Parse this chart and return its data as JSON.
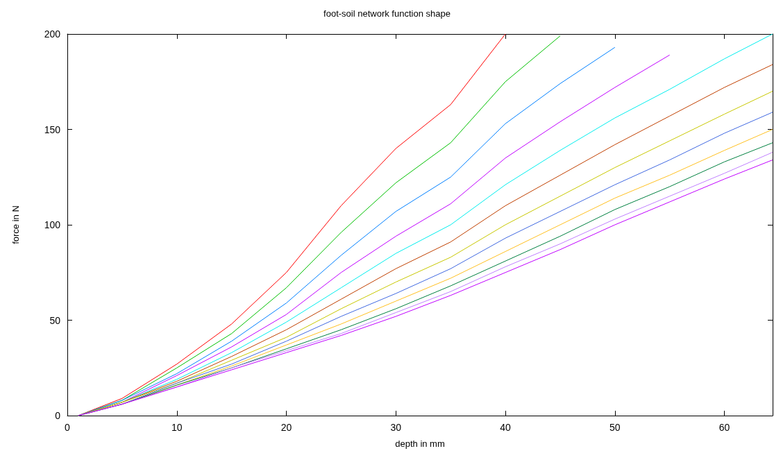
{
  "chart_data": {
    "type": "line",
    "title": "foot-soil network function shape",
    "xlabel": "depth in mm",
    "ylabel": "force in N",
    "xlim": [
      0,
      64.4
    ],
    "xticks": [
      0,
      10,
      20,
      30,
      40,
      50,
      60
    ],
    "ylim": [
      0,
      200
    ],
    "yticks": [
      0,
      50,
      100,
      150,
      200
    ],
    "grid": false,
    "marker": "none",
    "line_style": "solid",
    "series": [
      {
        "color": "#ff0000",
        "x": [
          1,
          5,
          10,
          15,
          20,
          25,
          30,
          35,
          40
        ],
        "values": [
          0,
          9,
          27,
          48,
          75,
          110,
          140,
          163,
          200
        ]
      },
      {
        "color": "#00c000",
        "x": [
          1,
          5,
          10,
          15,
          20,
          25,
          30,
          35,
          40,
          45
        ],
        "values": [
          0,
          8,
          25,
          43,
          67,
          96,
          122,
          143,
          175,
          199
        ]
      },
      {
        "color": "#0080ff",
        "x": [
          1,
          5,
          10,
          15,
          20,
          25,
          30,
          35,
          40,
          45,
          50
        ],
        "values": [
          0,
          8,
          22,
          39,
          59,
          84,
          107,
          125,
          153,
          174,
          193
        ]
      },
      {
        "color": "#c000ff",
        "x": [
          1,
          5,
          10,
          15,
          20,
          25,
          30,
          35,
          40,
          45,
          50,
          55
        ],
        "values": [
          0,
          7,
          21,
          36,
          53,
          75,
          94,
          111,
          135,
          154,
          172,
          189
        ]
      },
      {
        "color": "#00eeee",
        "x": [
          1,
          5,
          10,
          15,
          20,
          25,
          30,
          35,
          40,
          45,
          50,
          55,
          60,
          64.4
        ],
        "values": [
          0,
          7,
          19,
          33,
          49,
          67,
          85,
          100,
          121,
          139,
          156,
          171,
          187,
          200
        ]
      },
      {
        "color": "#c04000",
        "x": [
          1,
          5,
          10,
          15,
          20,
          25,
          30,
          35,
          40,
          45,
          50,
          55,
          60,
          64.4
        ],
        "values": [
          0,
          7,
          18,
          31,
          45,
          61,
          77,
          91,
          110,
          126,
          142,
          157,
          172,
          184
        ]
      },
      {
        "color": "#c8c800",
        "x": [
          1,
          5,
          10,
          15,
          20,
          25,
          30,
          35,
          40,
          45,
          50,
          55,
          60,
          64.4
        ],
        "values": [
          0,
          7,
          17,
          29,
          41,
          56,
          70,
          83,
          100,
          115,
          130,
          144,
          158,
          170
        ]
      },
      {
        "color": "#4169e1",
        "x": [
          1,
          5,
          10,
          15,
          20,
          25,
          30,
          35,
          40,
          45,
          50,
          55,
          60,
          64.4
        ],
        "values": [
          0,
          6,
          17,
          27,
          39,
          52,
          64,
          77,
          93,
          107,
          121,
          134,
          148,
          159
        ]
      },
      {
        "color": "#ffc020",
        "x": [
          1,
          5,
          10,
          15,
          20,
          25,
          30,
          35,
          40,
          45,
          50,
          55,
          60,
          64.4
        ],
        "values": [
          0,
          6,
          16,
          26,
          37,
          48,
          60,
          72,
          86,
          100,
          114,
          126,
          139,
          150
        ]
      },
      {
        "color": "#008040",
        "x": [
          1,
          5,
          10,
          15,
          20,
          25,
          30,
          35,
          40,
          45,
          50,
          55,
          60,
          64.4
        ],
        "values": [
          0,
          6,
          16,
          25,
          35,
          45,
          56,
          68,
          81,
          94,
          108,
          120,
          133,
          143
        ]
      },
      {
        "color": "#c080ff",
        "x": [
          1,
          5,
          10,
          15,
          20,
          25,
          30,
          35,
          40,
          45,
          50,
          55,
          60,
          64.4
        ],
        "values": [
          0,
          6,
          15,
          25,
          34,
          43,
          54,
          65,
          78,
          90,
          103,
          115,
          127,
          138
        ]
      },
      {
        "color": "#c000ff",
        "x": [
          1,
          5,
          10,
          15,
          20,
          25,
          30,
          35,
          40,
          45,
          50,
          55,
          60,
          64.4
        ],
        "values": [
          0,
          6,
          15,
          24,
          33,
          42,
          52,
          63,
          75,
          87,
          100,
          112,
          124,
          134
        ]
      }
    ]
  }
}
